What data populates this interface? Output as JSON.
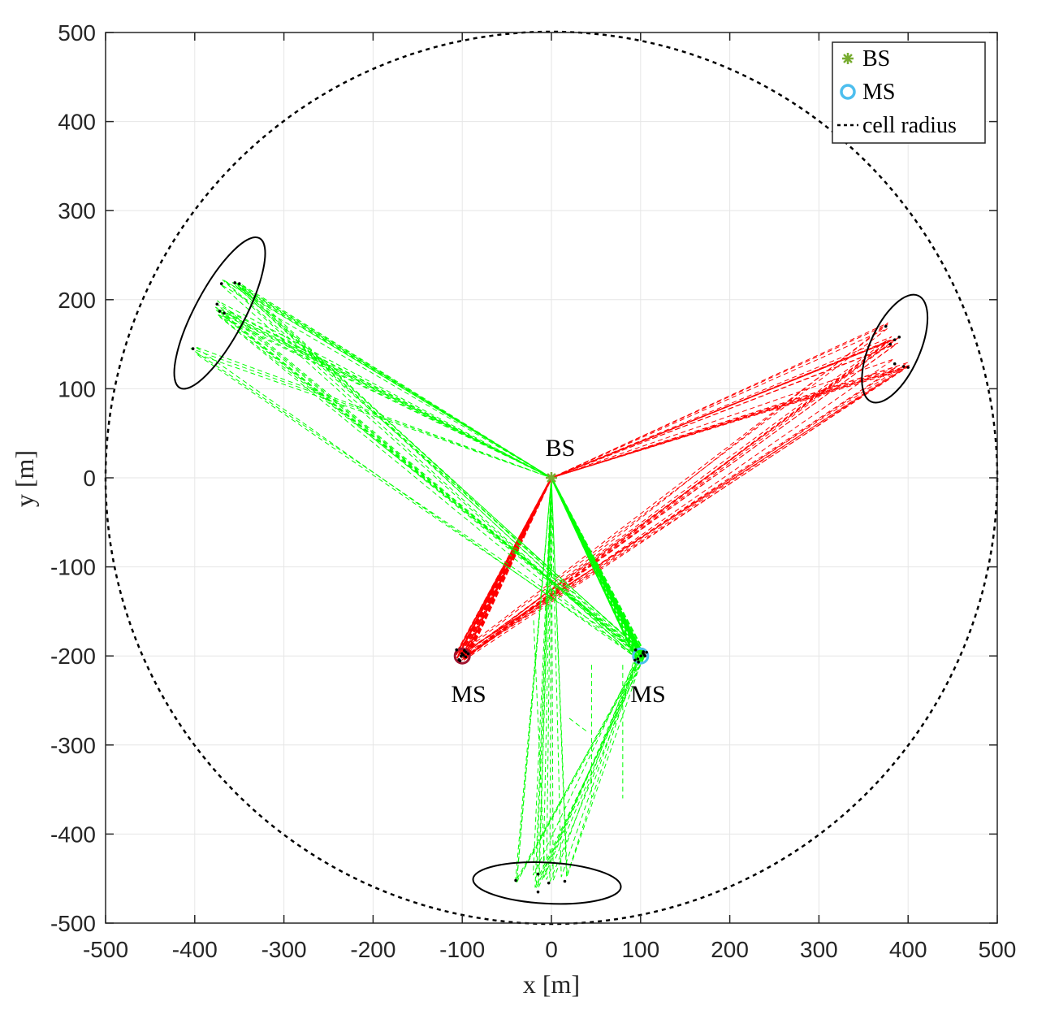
{
  "chart_data": {
    "type": "scatter",
    "title": "",
    "xlabel": "x [m]",
    "ylabel": "y [m]",
    "xlim": [
      -500,
      500
    ],
    "ylim": [
      -500,
      500
    ],
    "xticks": [
      "-500",
      "-400",
      "-300",
      "-200",
      "-100",
      "0",
      "100",
      "200",
      "300",
      "400",
      "500"
    ],
    "yticks": [
      "500",
      "400",
      "300",
      "200",
      "100",
      "0",
      "-100",
      "-200",
      "-300",
      "-400",
      "-500"
    ],
    "grid": true,
    "legend": {
      "position": "top-right",
      "entries": [
        {
          "label": "BS",
          "marker": "asterisk",
          "color": "#77ac30"
        },
        {
          "label": "MS",
          "marker": "circle",
          "color": "#4dbeee"
        },
        {
          "label": "cell radius",
          "marker": "dashed-line",
          "color": "#000000"
        }
      ]
    },
    "cell_radius": 500,
    "bs": {
      "x": 0,
      "y": 0,
      "label": "BS"
    },
    "ms": [
      {
        "x": -100,
        "y": -200,
        "label": "MS",
        "color": "#a2142f"
      },
      {
        "x": 100,
        "y": -200,
        "label": "MS",
        "color": "#4dbeee"
      }
    ],
    "clusters": [
      {
        "center": [
          -372,
          185
        ],
        "semi_axes": [
          95,
          28
        ],
        "angle": 62,
        "scatterers": [
          [
            -370,
            218
          ],
          [
            -355,
            219
          ],
          [
            -350,
            218
          ],
          [
            -375,
            195
          ],
          [
            -367,
            185
          ],
          [
            -372,
            187
          ],
          [
            -402,
            145
          ]
        ]
      },
      {
        "center": [
          385,
          145
        ],
        "semi_axes": [
          65,
          28
        ],
        "angle": 66,
        "scatterers": [
          [
            375,
            170
          ],
          [
            385,
            155
          ],
          [
            390,
            158
          ],
          [
            380,
            150
          ],
          [
            385,
            128
          ],
          [
            395,
            125
          ],
          [
            400,
            124
          ]
        ]
      },
      {
        "center": [
          -5,
          -455
        ],
        "semi_axes": [
          83,
          23
        ],
        "angle": -3,
        "scatterers": [
          [
            -40,
            -452
          ],
          [
            -15,
            -445
          ],
          [
            15,
            -453
          ],
          [
            -3,
            -455
          ],
          [
            -15,
            -465
          ]
        ]
      }
    ],
    "paths": [
      {
        "name": "MS1 links",
        "color": "#ff0000",
        "from_ms": 0,
        "clusters": [
          1
        ]
      },
      {
        "name": "MS2 links",
        "color": "#00ff00",
        "from_ms": 1,
        "clusters": [
          0,
          2
        ]
      }
    ],
    "rays": [
      {
        "color": "#00ff00",
        "from": [
          -20,
          -160
        ],
        "to": [
          -8,
          -430
        ]
      },
      {
        "color": "#00ff00",
        "from": [
          45,
          -210
        ],
        "to": [
          45,
          -360
        ]
      },
      {
        "color": "#00ff00",
        "from": [
          80,
          -210
        ],
        "to": [
          80,
          -360
        ]
      },
      {
        "color": "#00ff00",
        "from": [
          20,
          -270
        ],
        "to": [
          40,
          -285
        ]
      }
    ]
  }
}
